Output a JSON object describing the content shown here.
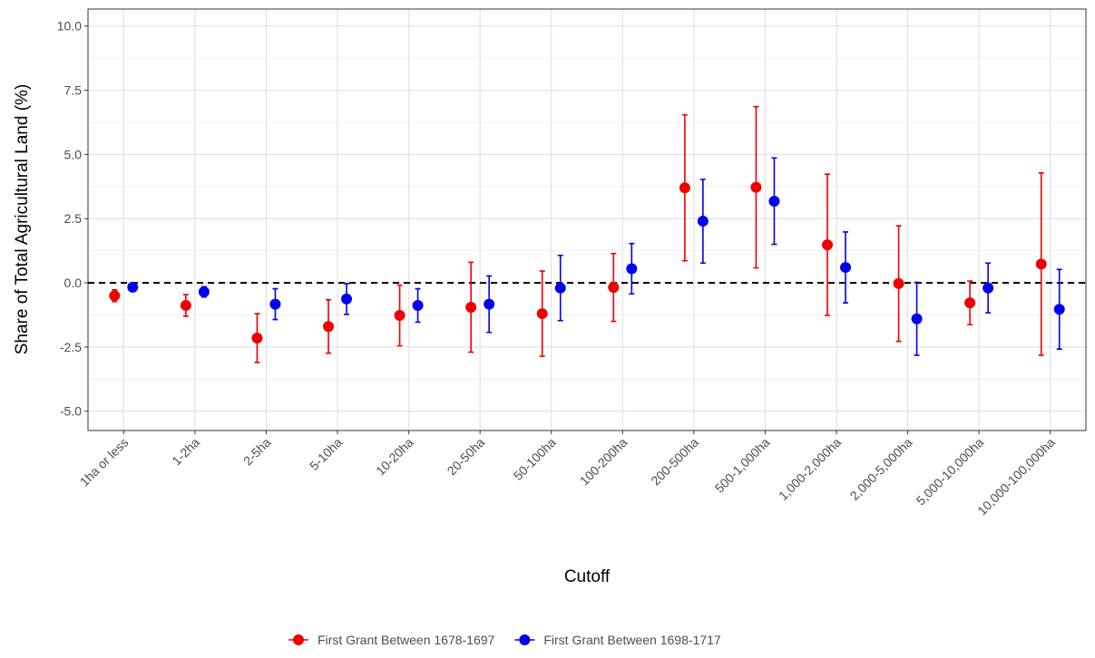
{
  "chart_data": {
    "type": "errorbar-points",
    "x_label": "Cutoff",
    "y_label": "Share of Total Agricultural Land (%)",
    "categories": [
      "1ha or less",
      "1-2ha",
      "2-5ha",
      "5-10ha",
      "10-20ha",
      "20-50ha",
      "50-100ha",
      "100-200ha",
      "200-500ha",
      "500-1,000ha",
      "1,000-2,000ha",
      "2,000-5,000ha",
      "5,000-10,000ha",
      "10,000-100,000ha"
    ],
    "series": [
      {
        "name": "First Grant Between 1678-1697",
        "color": "#ee0000",
        "values": [
          -0.5,
          -0.88,
          -2.15,
          -1.7,
          -1.27,
          -0.95,
          -1.2,
          -0.18,
          3.7,
          3.72,
          1.48,
          -0.03,
          -0.78,
          0.73
        ],
        "errors": [
          0.23,
          0.42,
          0.95,
          1.04,
          1.18,
          1.75,
          1.66,
          1.32,
          2.84,
          3.14,
          2.75,
          2.25,
          0.85,
          3.55
        ]
      },
      {
        "name": "First Grant Between 1698-1717",
        "color": "#0000ee",
        "values": [
          -0.17,
          -0.35,
          -0.83,
          -0.63,
          -0.88,
          -0.83,
          -0.2,
          0.55,
          2.4,
          3.18,
          0.6,
          -1.4,
          -0.2,
          -1.03
        ],
        "errors": [
          0.1,
          0.2,
          0.6,
          0.6,
          0.65,
          1.1,
          1.27,
          0.98,
          1.63,
          1.68,
          1.38,
          1.42,
          0.97,
          1.55
        ]
      }
    ],
    "ylim": [
      -5.75,
      10.66
    ],
    "yticks": [
      {
        "value": -5,
        "label": "-5.0"
      },
      {
        "value": -2.5,
        "label": "-2.5"
      },
      {
        "value": 0,
        "label": "0.0"
      },
      {
        "value": 2.5,
        "label": "2.5"
      },
      {
        "value": 5,
        "label": "5.0"
      },
      {
        "value": 7.5,
        "label": "7.5"
      },
      {
        "value": 10,
        "label": "10.0"
      }
    ],
    "hline": 0,
    "grid": true,
    "legend_position": "bottom"
  }
}
